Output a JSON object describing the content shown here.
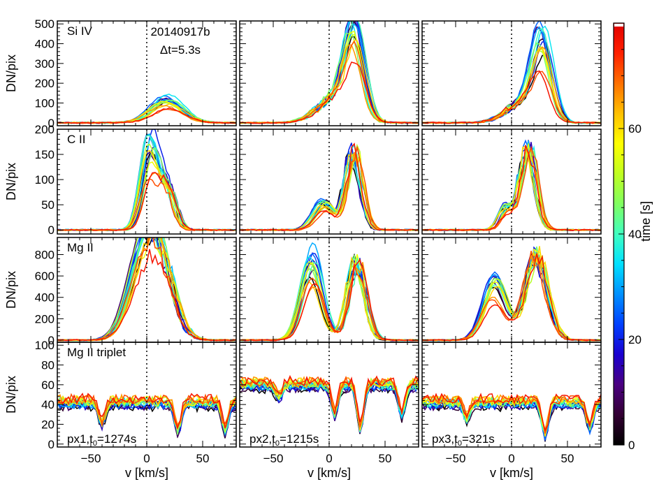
{
  "chart_data": {
    "type": "line",
    "figure_id": "20140917b",
    "cadence_label": "Δt=5.3s",
    "xlabel": "v [km/s]",
    "ylabel": "DN/pix",
    "xlim": [
      -80,
      80
    ],
    "xticks": [
      -50,
      0,
      50
    ],
    "rows": [
      {
        "line": "Si IV",
        "ylim": [
          -15,
          515
        ],
        "yticks": [
          0,
          100,
          200,
          300,
          400,
          500
        ]
      },
      {
        "line": "C II",
        "ylim": [
          -8,
          200
        ],
        "yticks": [
          0,
          50,
          100,
          150,
          200
        ]
      },
      {
        "line": "Mg II",
        "ylim": [
          -20,
          960
        ],
        "yticks": [
          0,
          200,
          400,
          600,
          800
        ]
      },
      {
        "line": "Mg II triplet",
        "ylim": [
          -3,
          103
        ],
        "yticks": [
          0,
          20,
          40,
          60,
          80,
          100
        ]
      }
    ],
    "columns": [
      {
        "pixel_label": "px1,t",
        "t0_sub": "0",
        "t0_value": "=1274s"
      },
      {
        "pixel_label": "px2,t",
        "t0_sub": "0",
        "t0_value": "=1215s"
      },
      {
        "pixel_label": "px3,t",
        "t0_sub": "0",
        "t0_value": "=321s"
      }
    ],
    "colorbar": {
      "label": "time [s]",
      "range": [
        0,
        80
      ],
      "ticks": [
        0,
        20,
        40,
        60
      ],
      "colormap": [
        "#000000",
        "#330033",
        "#4a0080",
        "#1a00d0",
        "#0040ff",
        "#0090ff",
        "#00e0ff",
        "#40ffc0",
        "#80ff60",
        "#c0ff20",
        "#ffff00",
        "#ffc000",
        "#ff7000",
        "#ff2000",
        "#e00000",
        "#ffffff"
      ]
    },
    "series": [
      {
        "panel": [
          0,
          0
        ],
        "name": "",
        "profile_peaks": [
          {
            "v": 18,
            "amp": 130,
            "w": 20
          }
        ],
        "time_range_s": [
          0,
          75
        ]
      },
      {
        "panel": [
          0,
          1
        ],
        "profile_peaks": [
          {
            "v": 22,
            "amp": 480,
            "w": 12
          },
          {
            "v": 5,
            "amp": 120,
            "w": 22
          }
        ],
        "time_range_s": [
          0,
          75
        ]
      },
      {
        "panel": [
          0,
          2
        ],
        "profile_peaks": [
          {
            "v": 27,
            "amp": 430,
            "w": 12
          },
          {
            "v": 8,
            "amp": 90,
            "w": 20
          }
        ],
        "time_range_s": [
          0,
          75
        ]
      },
      {
        "panel": [
          1,
          0
        ],
        "profile_peaks": [
          {
            "v": 3,
            "amp": 175,
            "w": 10
          },
          {
            "v": 18,
            "amp": 80,
            "w": 10
          }
        ],
        "time_range_s": [
          0,
          75
        ]
      },
      {
        "panel": [
          1,
          1
        ],
        "profile_peaks": [
          {
            "v": -5,
            "amp": 60,
            "w": 12
          },
          {
            "v": 22,
            "amp": 150,
            "w": 10
          }
        ],
        "time_range_s": [
          0,
          75
        ]
      },
      {
        "panel": [
          1,
          2
        ],
        "profile_peaks": [
          {
            "v": -5,
            "amp": 50,
            "w": 8
          },
          {
            "v": 15,
            "amp": 160,
            "w": 10
          }
        ],
        "time_range_s": [
          0,
          75
        ]
      },
      {
        "panel": [
          2,
          0
        ],
        "profile_peaks": [
          {
            "v": -5,
            "amp": 700,
            "w": 18
          },
          {
            "v": 12,
            "amp": 650,
            "w": 18
          }
        ],
        "time_range_s": [
          0,
          75
        ]
      },
      {
        "panel": [
          2,
          1
        ],
        "profile_peaks": [
          {
            "v": -15,
            "amp": 820,
            "w": 13
          },
          {
            "v": 25,
            "amp": 720,
            "w": 11
          }
        ],
        "time_range_s": [
          0,
          75
        ]
      },
      {
        "panel": [
          2,
          2
        ],
        "profile_peaks": [
          {
            "v": -15,
            "amp": 600,
            "w": 14
          },
          {
            "v": 22,
            "amp": 780,
            "w": 14
          }
        ],
        "time_range_s": [
          0,
          75
        ]
      },
      {
        "panel": [
          3,
          0
        ],
        "baseline": 42,
        "dips": [
          {
            "v": -40,
            "depth": 22
          },
          {
            "v": 28,
            "depth": 30
          },
          {
            "v": 70,
            "depth": 28
          }
        ],
        "time_range_s": [
          0,
          75
        ]
      },
      {
        "panel": [
          3,
          1
        ],
        "baseline": 60,
        "dips": [
          {
            "v": -45,
            "depth": 12
          },
          {
            "v": 5,
            "depth": 30
          },
          {
            "v": 28,
            "depth": 45
          },
          {
            "v": 65,
            "depth": 30
          }
        ],
        "time_range_s": [
          0,
          75
        ]
      },
      {
        "panel": [
          3,
          2
        ],
        "baseline": 42,
        "dips": [
          {
            "v": -40,
            "depth": 16
          },
          {
            "v": 30,
            "depth": 32
          },
          {
            "v": 70,
            "depth": 26
          }
        ],
        "time_range_s": [
          0,
          75
        ]
      }
    ]
  }
}
